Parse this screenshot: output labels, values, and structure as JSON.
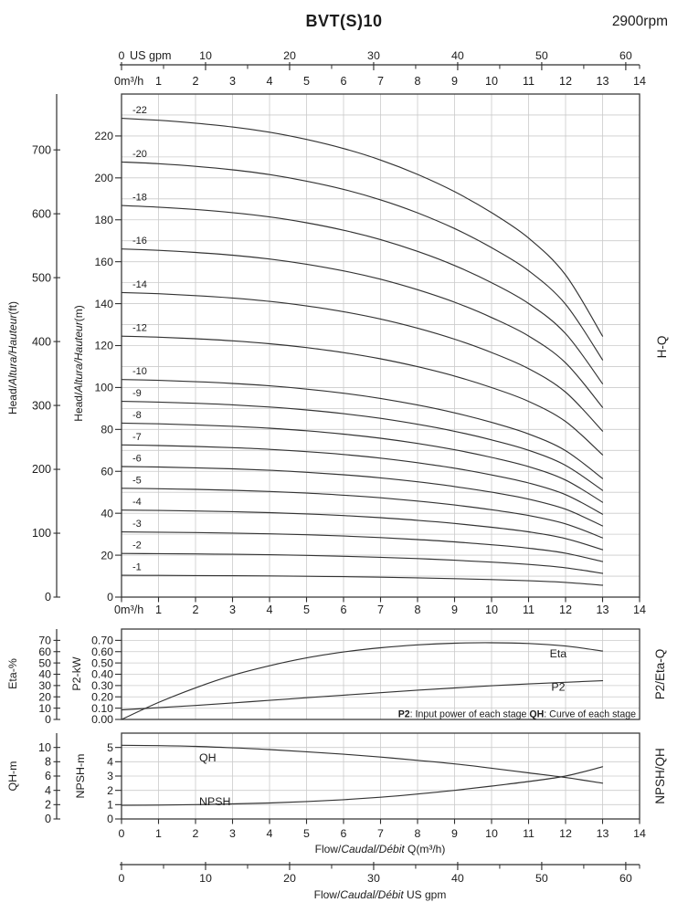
{
  "header": {
    "title": "BVT(S)10",
    "rpm": "2900rpm"
  },
  "colors": {
    "curve": "#333333",
    "grid": "#cbcbcb",
    "axis": "#2e2e2e",
    "border": "#3c3c3c",
    "text": "#1c1c1c"
  },
  "chart_data": [
    {
      "id": "hq",
      "type": "line",
      "side_label": "H-Q",
      "x_axis": {
        "unit_prefix": "0m³/h",
        "ticks": [
          1,
          2,
          3,
          4,
          5,
          6,
          7,
          8,
          9,
          10,
          11,
          12,
          13,
          14
        ],
        "range": [
          0,
          14
        ],
        "grid_step": 1
      },
      "gpm_axis": {
        "zero_label": "0",
        "unit_label": "US gpm",
        "ticks": [
          0,
          10,
          20,
          30,
          40,
          50,
          60
        ],
        "minor_ticks": [
          5,
          15,
          25,
          35,
          45,
          55
        ],
        "gpm_per_m3h": 4.403
      },
      "y_m_axis": {
        "label_segments": [
          {
            "t": "Head/"
          },
          {
            "t": "Altura/Hauteur",
            "i": true
          },
          {
            "t": "(m)"
          }
        ],
        "ticks": [
          0,
          20,
          40,
          60,
          80,
          100,
          120,
          140,
          160,
          180,
          200,
          220
        ],
        "range": [
          0,
          240
        ],
        "grid_step": 10
      },
      "y_ft_axis": {
        "label_segments": [
          {
            "t": "Head/"
          },
          {
            "t": "Altura/Hauteur",
            "i": true
          },
          {
            "t": "(ft)"
          }
        ],
        "ticks": [
          0,
          100,
          200,
          300,
          400,
          500,
          600,
          700
        ],
        "m_per_ft": 0.3048
      },
      "profile": {
        "q": [
          0,
          1,
          2,
          3,
          4,
          5,
          6,
          7,
          8,
          9,
          10,
          11,
          12,
          13
        ],
        "f": [
          1,
          0.996,
          0.99,
          0.982,
          0.971,
          0.956,
          0.937,
          0.913,
          0.883,
          0.847,
          0.803,
          0.75,
          0.673,
          0.545
        ]
      },
      "series": [
        {
          "label": "-1",
          "h0_m": 10.4
        },
        {
          "label": "-2",
          "h0_m": 20.8
        },
        {
          "label": "-3",
          "h0_m": 31.1
        },
        {
          "label": "-4",
          "h0_m": 41.5
        },
        {
          "label": "-5",
          "h0_m": 51.9
        },
        {
          "label": "-6",
          "h0_m": 62.3
        },
        {
          "label": "-7",
          "h0_m": 72.6
        },
        {
          "label": "-8",
          "h0_m": 83.0
        },
        {
          "label": "-9",
          "h0_m": 93.4
        },
        {
          "label": "-10",
          "h0_m": 103.8
        },
        {
          "label": "-12",
          "h0_m": 124.5
        },
        {
          "label": "-14",
          "h0_m": 145.3
        },
        {
          "label": "-16",
          "h0_m": 166.1
        },
        {
          "label": "-18",
          "h0_m": 186.8
        },
        {
          "label": "-20",
          "h0_m": 207.6
        },
        {
          "label": "-22",
          "h0_m": 228.4
        }
      ]
    },
    {
      "id": "eta_p2",
      "type": "line",
      "side_label": "P2/Eta-Q",
      "x_axis": {
        "range": [
          0,
          14
        ],
        "grid_step": 1
      },
      "y_p2_axis": {
        "label": "P2-kW",
        "ticks": [
          "0.00",
          "0.10",
          "0.20",
          "0.30",
          "0.40",
          "0.50",
          "0.60",
          "0.70"
        ],
        "range": [
          0,
          0.8
        ],
        "grid_step": 0.1
      },
      "y_eta_axis": {
        "label": "Eta-%",
        "ticks": [
          0,
          10,
          20,
          30,
          40,
          50,
          60,
          70
        ]
      },
      "series": [
        {
          "name": "Eta",
          "label_at": [
            11.8,
            0.585
          ],
          "points": [
            [
              0,
              0
            ],
            [
              1,
              0.15
            ],
            [
              2,
              0.28
            ],
            [
              3,
              0.39
            ],
            [
              4,
              0.475
            ],
            [
              5,
              0.545
            ],
            [
              6,
              0.597
            ],
            [
              7,
              0.634
            ],
            [
              8,
              0.66
            ],
            [
              9,
              0.675
            ],
            [
              10,
              0.679
            ],
            [
              11,
              0.672
            ],
            [
              12,
              0.65
            ],
            [
              13,
              0.605
            ]
          ]
        },
        {
          "name": "P2",
          "label_at": [
            11.8,
            0.29
          ],
          "points": [
            [
              0,
              0.085
            ],
            [
              1,
              0.104
            ],
            [
              2,
              0.124
            ],
            [
              3,
              0.146
            ],
            [
              4,
              0.169
            ],
            [
              5,
              0.192
            ],
            [
              6,
              0.215
            ],
            [
              7,
              0.237
            ],
            [
              8,
              0.259
            ],
            [
              9,
              0.279
            ],
            [
              10,
              0.298
            ],
            [
              11,
              0.314
            ],
            [
              12,
              0.329
            ],
            [
              13,
              0.343
            ]
          ]
        }
      ],
      "note_segments": [
        {
          "t": "P2",
          "b": true
        },
        {
          "t": ": Input power of each stage ",
          "b": false
        },
        {
          "t": "QH",
          "b": true
        },
        {
          "t": ": Curve of each stage",
          "b": false
        }
      ]
    },
    {
      "id": "qh_npsh",
      "type": "line",
      "side_label": "NPSH/QH",
      "x_axis": {
        "ticks": [
          0,
          1,
          2,
          3,
          4,
          5,
          6,
          7,
          8,
          9,
          10,
          11,
          12,
          13,
          14
        ],
        "range": [
          0,
          14
        ],
        "grid_step": 1,
        "label_segments": [
          {
            "t": "Flow/"
          },
          {
            "t": "Caudal/Débit",
            "i": true
          },
          {
            "t": " Q(m³/h)"
          }
        ]
      },
      "gpm_axis": {
        "ticks": [
          0,
          10,
          20,
          30,
          40,
          50,
          60
        ],
        "minor_ticks": [
          5,
          15,
          25,
          35,
          45,
          55
        ],
        "gpm_per_m3h": 4.403,
        "label_segments": [
          {
            "t": "Flow/"
          },
          {
            "t": "Caudal/Débit",
            "i": true
          },
          {
            "t": "  US gpm"
          }
        ]
      },
      "y_npsh_axis": {
        "label": "NPSH-m",
        "ticks": [
          0,
          1,
          2,
          3,
          4,
          5
        ],
        "range": [
          0,
          6
        ],
        "grid_step": 1
      },
      "y_qh_axis": {
        "label": "QH-m",
        "ticks": [
          0,
          2,
          4,
          6,
          8,
          10
        ],
        "range": [
          0,
          12
        ]
      },
      "series": [
        {
          "name": "QH",
          "scale": "qh",
          "label_at": [
            2.1,
            8.6
          ],
          "points": [
            [
              0,
              10.3
            ],
            [
              1,
              10.25
            ],
            [
              2,
              10.15
            ],
            [
              3,
              9.95
            ],
            [
              4,
              9.7
            ],
            [
              5,
              9.4
            ],
            [
              6,
              9.05
            ],
            [
              7,
              8.65
            ],
            [
              8,
              8.2
            ],
            [
              9,
              7.7
            ],
            [
              10,
              7.1
            ],
            [
              11,
              6.45
            ],
            [
              12,
              5.8
            ],
            [
              13,
              5.0
            ]
          ]
        },
        {
          "name": "NPSH",
          "scale": "npsh",
          "label_at": [
            2.1,
            1.25
          ],
          "points": [
            [
              0,
              0.95
            ],
            [
              1,
              0.97
            ],
            [
              2,
              1.0
            ],
            [
              3,
              1.05
            ],
            [
              4,
              1.12
            ],
            [
              5,
              1.22
            ],
            [
              6,
              1.35
            ],
            [
              7,
              1.52
            ],
            [
              8,
              1.74
            ],
            [
              9,
              2.0
            ],
            [
              10,
              2.3
            ],
            [
              11,
              2.62
            ],
            [
              12,
              3.0
            ],
            [
              13,
              3.65
            ]
          ]
        }
      ]
    }
  ]
}
